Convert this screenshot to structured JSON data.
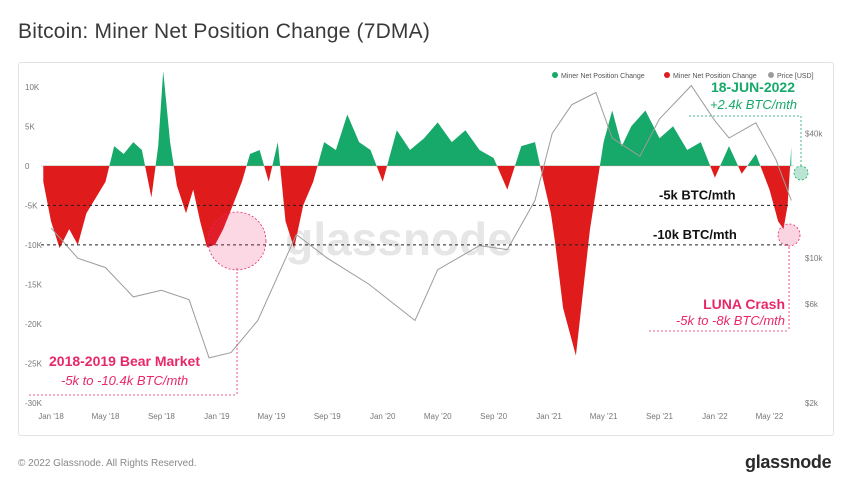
{
  "title": "Bitcoin: Miner Net Position Change (7DMA)",
  "footer": {
    "copyright": "© 2022 Glassnode. All Rights Reserved.",
    "brand": "glassnode",
    "watermark": "glassnode"
  },
  "chart_data": {
    "type": "area",
    "title": "Bitcoin: Miner Net Position Change (7DMA)",
    "x_labels": [
      "Jan '18",
      "May '18",
      "Sep '18",
      "Jan '19",
      "May '19",
      "Sep '19",
      "Jan '20",
      "May '20",
      "Sep '20",
      "Jan '21",
      "May '21",
      "Sep '21",
      "Jan '22",
      "May '22"
    ],
    "y_left_ticks": [
      "10K",
      "5K",
      "0",
      "-5K",
      "-10K",
      "-15K",
      "-20K",
      "-25K",
      "-30K"
    ],
    "y_left_range": [
      -30000,
      12000
    ],
    "y_right_ticks": [
      "$40k",
      "$10k",
      "$6k",
      "$2k"
    ],
    "legend": [
      "Miner Net Position Change",
      "Miner Net Position Change",
      "Price [USD]"
    ],
    "legend_position": "top-right",
    "colors": {
      "positive": "#16a96a",
      "negative": "#e01b1b",
      "price": "#9c9c9c",
      "annotation_pink": "#e8276a",
      "annotation_green": "#16a96a"
    },
    "series": [
      {
        "name": "Miner Net Position Change",
        "x": [
          "2017-12-15",
          "2018-01-01",
          "2018-01-20",
          "2018-02-10",
          "2018-03-01",
          "2018-03-20",
          "2018-04-10",
          "2018-05-01",
          "2018-05-20",
          "2018-06-10",
          "2018-07-01",
          "2018-07-20",
          "2018-08-10",
          "2018-08-25",
          "2018-09-05",
          "2018-09-20",
          "2018-10-05",
          "2018-10-25",
          "2018-11-10",
          "2018-11-25",
          "2018-12-10",
          "2018-12-28",
          "2019-01-15",
          "2019-02-05",
          "2019-02-25",
          "2019-03-15",
          "2019-04-05",
          "2019-04-25",
          "2019-05-15",
          "2019-06-01",
          "2019-06-20",
          "2019-07-10",
          "2019-08-01",
          "2019-08-25",
          "2019-09-20",
          "2019-10-15",
          "2019-11-10",
          "2019-12-05",
          "2020-01-01",
          "2020-02-01",
          "2020-03-01",
          "2020-04-01",
          "2020-05-01",
          "2020-06-01",
          "2020-07-01",
          "2020-08-01",
          "2020-09-01",
          "2020-10-01",
          "2020-11-01",
          "2020-12-01",
          "2020-12-20",
          "2021-01-05",
          "2021-01-15",
          "2021-02-01",
          "2021-03-01",
          "2021-04-01",
          "2021-05-01",
          "2021-05-20",
          "2021-06-10",
          "2021-07-01",
          "2021-08-01",
          "2021-09-01",
          "2021-10-01",
          "2021-11-01",
          "2021-12-01",
          "2022-01-01",
          "2022-02-01",
          "2022-03-01",
          "2022-04-01",
          "2022-05-01",
          "2022-05-20",
          "2022-06-01",
          "2022-06-10",
          "2022-06-18"
        ],
        "values": [
          -2000,
          -7000,
          -10400,
          -8000,
          -10000,
          -6000,
          -4000,
          -2000,
          2500,
          1500,
          3000,
          2000,
          -4000,
          2500,
          12000,
          3000,
          -2500,
          -6000,
          -3000,
          -7000,
          -10300,
          -10000,
          -8000,
          -5000,
          -2000,
          1500,
          2000,
          -2000,
          3000,
          -7000,
          -10400,
          -5000,
          -2000,
          3000,
          2000,
          6500,
          3000,
          2000,
          -2000,
          4500,
          2000,
          3500,
          5500,
          3000,
          4500,
          2000,
          1000,
          -3000,
          2500,
          3000,
          -2000,
          -6000,
          -10000,
          -18000,
          -24000,
          -8000,
          3000,
          7000,
          2500,
          5000,
          7000,
          3500,
          5000,
          2000,
          3000,
          -1500,
          2500,
          -1000,
          1500,
          -3000,
          -7000,
          -8000,
          -5000,
          2400
        ]
      },
      {
        "name": "Price [USD]",
        "x": [
          "2018-01-01",
          "2018-03-01",
          "2018-05-01",
          "2018-07-01",
          "2018-09-01",
          "2018-11-01",
          "2018-12-15",
          "2019-02-01",
          "2019-04-01",
          "2019-06-25",
          "2019-09-01",
          "2019-12-01",
          "2020-03-12",
          "2020-05-01",
          "2020-08-01",
          "2020-10-01",
          "2020-12-01",
          "2021-01-08",
          "2021-02-20",
          "2021-04-14",
          "2021-05-20",
          "2021-07-20",
          "2021-09-01",
          "2021-11-10",
          "2022-01-01",
          "2022-02-01",
          "2022-04-01",
          "2022-05-15",
          "2022-06-18"
        ],
        "values": [
          14000,
          10000,
          9000,
          6500,
          7000,
          6300,
          3300,
          3500,
          5000,
          13000,
          10000,
          7500,
          5000,
          8800,
          11500,
          11000,
          19000,
          40000,
          55000,
          63000,
          38000,
          31000,
          47000,
          68000,
          46000,
          38000,
          45000,
          30000,
          19000
        ]
      }
    ],
    "annotations": [
      {
        "title": "18-JUN-2022",
        "text": "+2.4k BTC/mth"
      },
      {
        "title": "LUNA Crash",
        "text": "-5k to -8k BTC/mth"
      },
      {
        "title": "2018-2019 Bear Market",
        "text": "-5k to -10.4k BTC/mth"
      },
      {
        "text": "-5k BTC/mth",
        "value": -5000
      },
      {
        "text": "-10k BTC/mth",
        "value": -10000
      }
    ]
  }
}
